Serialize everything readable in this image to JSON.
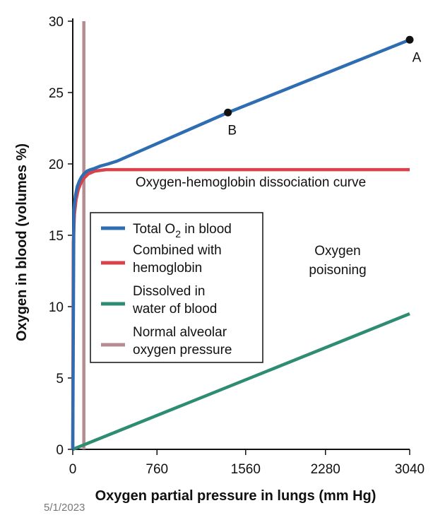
{
  "footer": {
    "date": "5/1/2023"
  },
  "chart_data": {
    "type": "line",
    "xlabel": "Oxygen partial pressure in lungs (mm Hg)",
    "ylabel": "Oxygen in blood (volumes %)",
    "xlim": [
      0,
      3040
    ],
    "ylim": [
      0,
      30
    ],
    "x_ticks": [
      0,
      760,
      1560,
      2280,
      3040
    ],
    "y_ticks": [
      0,
      5,
      10,
      15,
      20,
      25,
      30
    ],
    "series": [
      {
        "name": "Total O2 in blood",
        "legend_main": "Total O",
        "legend_sub": "2",
        "legend_rest": " in blood",
        "color": "#2f6db3",
        "x": [
          0,
          10,
          25,
          40,
          60,
          80,
          100,
          130,
          160,
          200,
          250,
          320,
          400,
          1400,
          3040
        ],
        "y": [
          0,
          16.8,
          17.8,
          18.4,
          18.8,
          19.1,
          19.3,
          19.5,
          19.6,
          19.7,
          19.85,
          20.0,
          20.2,
          23.6,
          28.7
        ]
      },
      {
        "name": "Combined with hemoglobin",
        "legend_lines": [
          "Combined with",
          "hemoglobin"
        ],
        "color": "#d9424a",
        "x": [
          0,
          5,
          15,
          30,
          50,
          70,
          100,
          140,
          200,
          300,
          500,
          1000,
          3040
        ],
        "y": [
          0,
          14.5,
          16.5,
          17.5,
          18.2,
          18.6,
          19.0,
          19.3,
          19.5,
          19.6,
          19.6,
          19.6,
          19.6
        ]
      },
      {
        "name": "Dissolved in water of blood",
        "legend_lines": [
          "Dissolved in",
          "water of blood"
        ],
        "color": "#2e8c72",
        "x": [
          0,
          3040
        ],
        "y": [
          0,
          9.5
        ]
      },
      {
        "name": "Normal alveolar oxygen pressure",
        "legend_lines": [
          "Normal alveolar",
          "oxygen pressure"
        ],
        "color": "#b58c90",
        "x": [
          100,
          100
        ],
        "y": [
          0,
          30
        ]
      }
    ],
    "points": [
      {
        "label": "A",
        "x": 3040,
        "y": 28.7
      },
      {
        "label": "B",
        "x": 1400,
        "y": 23.6
      }
    ],
    "annotations": {
      "curve_label": "Oxygen-hemoglobin dissociation curve",
      "poisoning_lines": [
        "Oxygen",
        "poisoning"
      ]
    }
  }
}
